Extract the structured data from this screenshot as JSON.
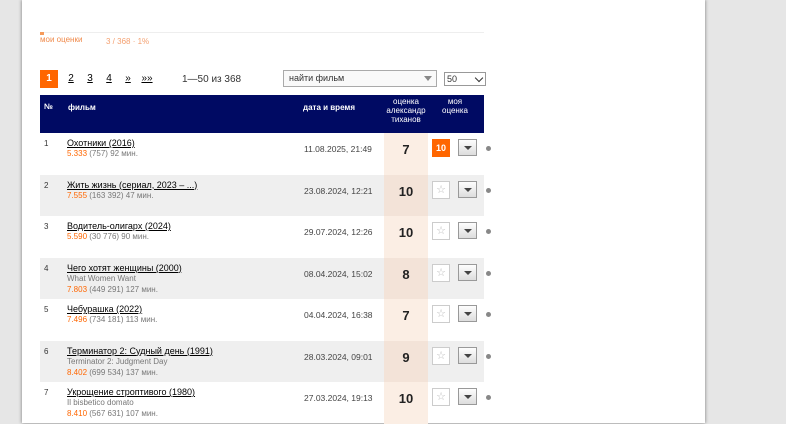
{
  "summary": {
    "my_ratings_label": "мои оценки",
    "my_ratings_count": "3 / 368 · 1%",
    "progress_fraction": 0.008
  },
  "pager": {
    "pages": [
      "1",
      "2",
      "3",
      "4",
      "»",
      "»»"
    ],
    "current": "1",
    "range_text": "1—50 из 368"
  },
  "search": {
    "placeholder": "найти фильм"
  },
  "per_page": {
    "value": "50"
  },
  "table": {
    "headers": {
      "num": "№",
      "film": "фильм",
      "date": "дата и время",
      "score_line1": "оценка",
      "score_line2": "александр",
      "score_line3": "тиханов",
      "my_line1": "моя",
      "my_line2": "оценка"
    },
    "rows": [
      {
        "num": "1",
        "title": "Охотники (2016)",
        "orig": "",
        "kp": "5.333",
        "votes": "(757)",
        "len": "92 мин.",
        "date": "11.08.2025, 21:49",
        "score": "7",
        "my": "10"
      },
      {
        "num": "2",
        "title": "Жить жизнь (сериал, 2023 – ...)",
        "orig": "",
        "kp": "7.555",
        "votes": "(163 392)",
        "len": "47 мин.",
        "date": "23.08.2024, 12:21",
        "score": "10",
        "my": ""
      },
      {
        "num": "3",
        "title": "Водитель-олигарх (2024)",
        "orig": "",
        "kp": "5.590",
        "votes": "(30 776)",
        "len": "90 мин.",
        "date": "29.07.2024, 12:26",
        "score": "10",
        "my": ""
      },
      {
        "num": "4",
        "title": "Чего хотят женщины (2000)",
        "orig": "What Women Want",
        "kp": "7.803",
        "votes": "(449 291)",
        "len": "127 мин.",
        "date": "08.04.2024, 15:02",
        "score": "8",
        "my": ""
      },
      {
        "num": "5",
        "title": "Чебурашка (2022)",
        "orig": "",
        "kp": "7.496",
        "votes": "(734 181)",
        "len": "113 мин.",
        "date": "04.04.2024, 16:38",
        "score": "7",
        "my": ""
      },
      {
        "num": "6",
        "title": "Терминатор 2: Судный день (1991)",
        "orig": "Terminator 2: Judgment Day",
        "kp": "8.402",
        "votes": "(699 534)",
        "len": "137 мин.",
        "date": "28.03.2024, 09:01",
        "score": "9",
        "my": ""
      },
      {
        "num": "7",
        "title": "Укрощение строптивого (1980)",
        "orig": "Il bisbetico domato",
        "kp": "8.410",
        "votes": "(567 631)",
        "len": "107 мин.",
        "date": "27.03.2024, 19:13",
        "score": "10",
        "my": ""
      }
    ],
    "empty_star": "☆"
  },
  "colors": {
    "accent": "#ff6600",
    "header_bg": "#000a63"
  }
}
